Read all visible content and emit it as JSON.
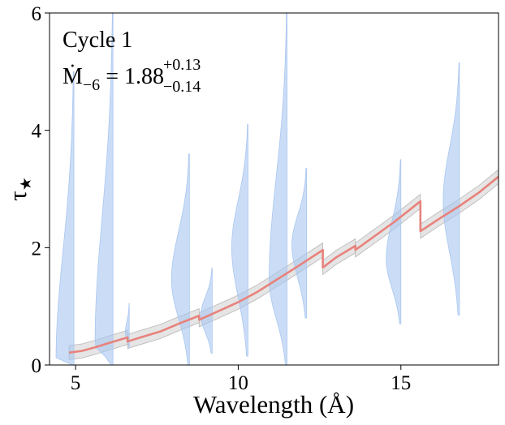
{
  "chart_data": {
    "type": "line",
    "xlabel": "Wavelength (Å)",
    "ylabel_main": "τ",
    "ylabel_sub": "★",
    "xlim": [
      4.2,
      18.0
    ],
    "ylim": [
      0,
      6
    ],
    "x_ticks": [
      5,
      10,
      15
    ],
    "y_ticks": [
      0,
      2,
      4,
      6
    ],
    "grid": false,
    "annotations": {
      "cycle": "Cycle 1",
      "mdot_symbol": "Ṁ",
      "mdot_sub": "−6",
      "mdot_eq": " = 1.88",
      "mdot_upper": "+0.13",
      "mdot_lower": "−0.14"
    },
    "colors": {
      "model_line": "#e8827c",
      "model_band": "#d0d0d0",
      "violin": "#a9c6f0"
    },
    "model_segments": [
      {
        "x": [
          4.8,
          5.2,
          5.6,
          6.0,
          6.6
        ],
        "y": [
          0.21,
          0.24,
          0.3,
          0.37,
          0.47
        ]
      },
      {
        "x": [
          6.6,
          7.0,
          7.6,
          8.2,
          8.8
        ],
        "y": [
          0.4,
          0.47,
          0.57,
          0.71,
          0.84
        ]
      },
      {
        "x": [
          8.8,
          9.4,
          10.0,
          10.6,
          11.2,
          11.8,
          12.6
        ],
        "y": [
          0.77,
          0.92,
          1.07,
          1.25,
          1.46,
          1.67,
          1.96
        ]
      },
      {
        "x": [
          12.6,
          13.0,
          13.6
        ],
        "y": [
          1.66,
          1.83,
          2.03
        ]
      },
      {
        "x": [
          13.6,
          14.2,
          14.8,
          15.6
        ],
        "y": [
          1.96,
          2.2,
          2.44,
          2.79
        ]
      },
      {
        "x": [
          15.6,
          16.2,
          16.8,
          17.4,
          18.0
        ],
        "y": [
          2.28,
          2.5,
          2.71,
          2.94,
          3.21
        ]
      }
    ],
    "band_halfwidth": 0.12,
    "violins": [
      {
        "x": 4.95,
        "ymin": 0.0,
        "ymax": 5.0,
        "mode": 0.05,
        "width": 0.55,
        "side": "left"
      },
      {
        "x": 6.15,
        "ymin": 0.0,
        "ymax": 6.0,
        "mode": 0.35,
        "width": 0.55,
        "side": "left"
      },
      {
        "x": 6.65,
        "ymin": 0.3,
        "ymax": 1.05,
        "mode": 0.55,
        "width": 0.12,
        "side": "left"
      },
      {
        "x": 8.5,
        "ymin": 0.0,
        "ymax": 3.6,
        "mode": 1.45,
        "width": 0.55,
        "side": "left"
      },
      {
        "x": 9.2,
        "ymin": 0.2,
        "ymax": 1.65,
        "mode": 0.85,
        "width": 0.35,
        "side": "left"
      },
      {
        "x": 10.3,
        "ymin": 0.15,
        "ymax": 4.1,
        "mode": 2.0,
        "width": 0.5,
        "side": "left"
      },
      {
        "x": 11.5,
        "ymin": 0.0,
        "ymax": 6.0,
        "mode": 1.45,
        "width": 0.55,
        "side": "left"
      },
      {
        "x": 12.1,
        "ymin": 0.8,
        "ymax": 3.35,
        "mode": 2.05,
        "width": 0.45,
        "side": "left"
      },
      {
        "x": 15.0,
        "ymin": 0.7,
        "ymax": 3.5,
        "mode": 1.8,
        "width": 0.45,
        "side": "left"
      },
      {
        "x": 16.8,
        "ymin": 0.85,
        "ymax": 5.15,
        "mode": 2.8,
        "width": 0.5,
        "side": "left"
      }
    ]
  }
}
